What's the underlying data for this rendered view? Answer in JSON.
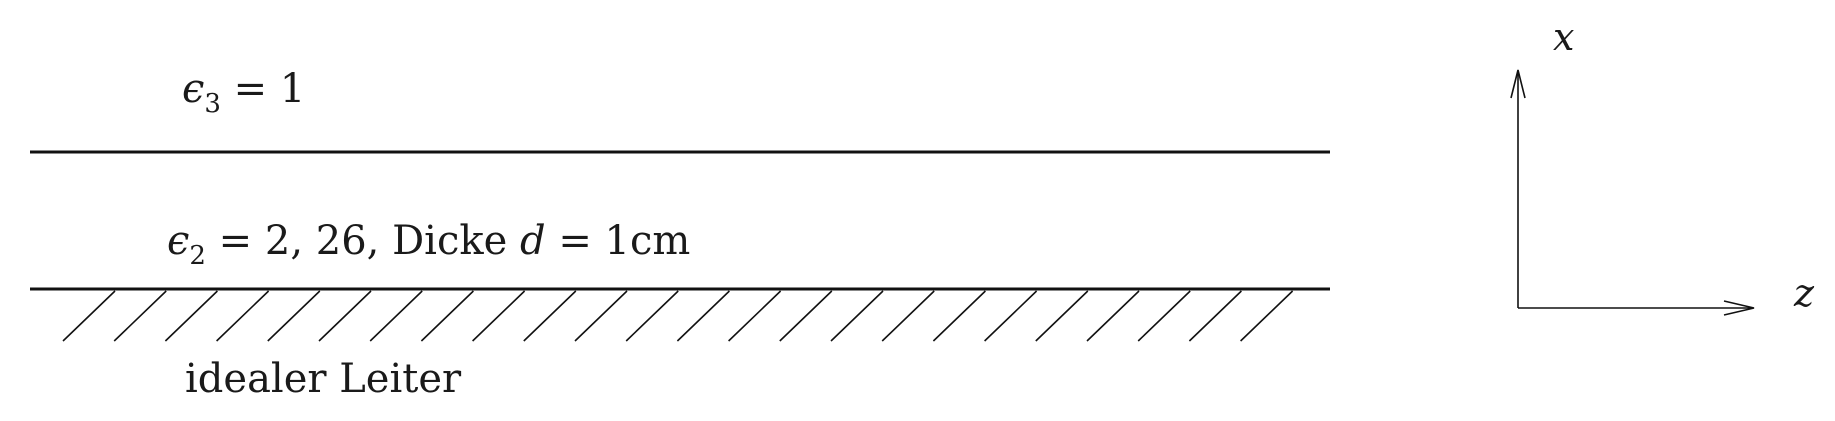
{
  "layers": {
    "top": {
      "symbol": "ϵ",
      "subscript": "3",
      "relation": " = 1"
    },
    "middle": {
      "symbol": "ϵ",
      "subscript": "2",
      "relation": " = 2, 26, Dicke ",
      "variable": "d",
      "relation2": " = 1cm"
    },
    "bottom": {
      "text": "idealer Leiter"
    }
  },
  "axes": {
    "vertical_label": "x",
    "horizontal_label": "z"
  },
  "colors": {
    "ink": "#111111",
    "background": "#ffffff"
  },
  "icons": {
    "hatch": "conductor-hatching",
    "arrow_up": "arrow-up-icon",
    "arrow_right": "arrow-right-icon"
  }
}
